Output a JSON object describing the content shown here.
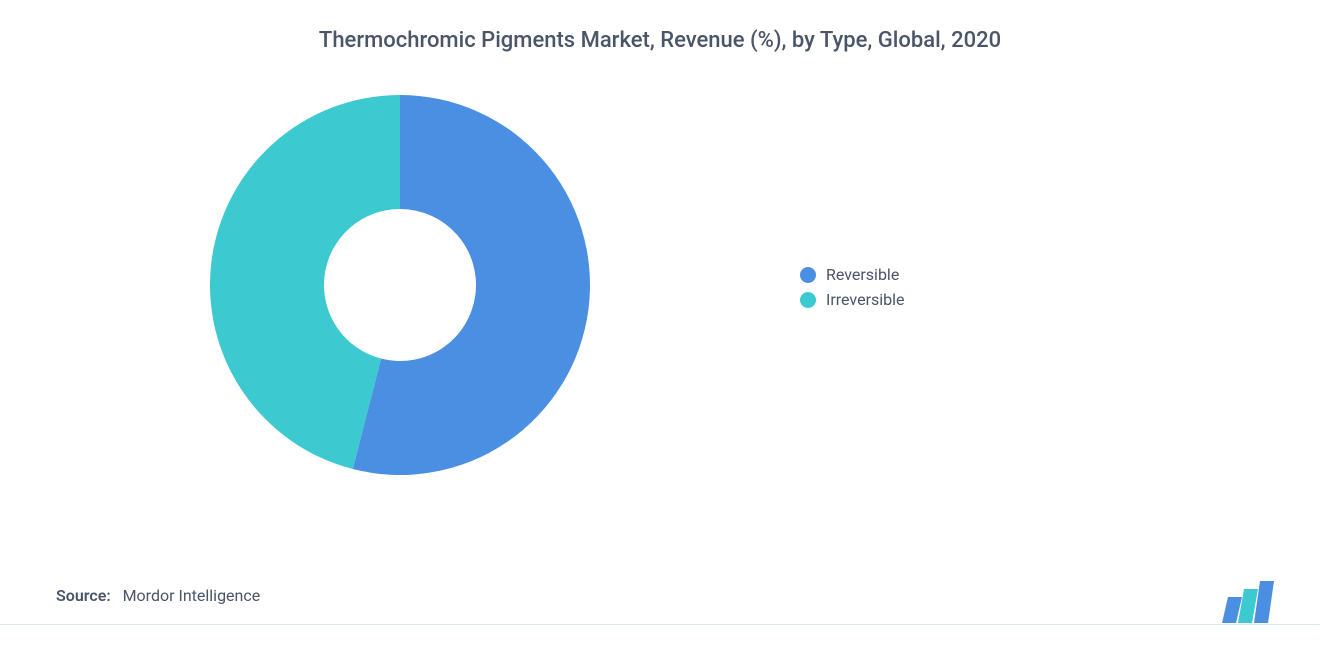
{
  "title": "Thermochromic Pigments Market, Revenue (%), by Type, Global, 2020",
  "chart": {
    "type": "donut",
    "background_color": "#ffffff",
    "inner_radius_ratio": 0.4,
    "series": [
      {
        "label": "Reversible",
        "value": 54,
        "color": "#4b8fe2"
      },
      {
        "label": "Irreversible",
        "value": 46,
        "color": "#3cc9cf"
      }
    ],
    "start_angle_deg": -90,
    "legend": {
      "position": "right",
      "font_size": 16,
      "text_color": "#4a5568",
      "swatch_shape": "circle"
    }
  },
  "source": {
    "label": "Source:",
    "value": "Mordor Intelligence"
  },
  "logo": {
    "bars": [
      {
        "color": "#4b8fe2"
      },
      {
        "color": "#3cc9cf"
      },
      {
        "color": "#4b8fe2"
      }
    ],
    "text_color": "#1a3a5c"
  }
}
